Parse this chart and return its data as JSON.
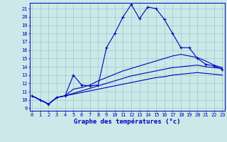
{
  "xlabel": "Graphe des températures (°c)",
  "x_hours": [
    0,
    1,
    2,
    3,
    4,
    5,
    6,
    7,
    8,
    9,
    10,
    11,
    12,
    13,
    14,
    15,
    16,
    17,
    18,
    19,
    20,
    21,
    22,
    23
  ],
  "line_peaked": [
    10.5,
    10.0,
    9.5,
    10.3,
    10.5,
    13.0,
    11.8,
    11.7,
    11.8,
    16.3,
    18.0,
    20.0,
    21.5,
    19.8,
    21.2,
    21.0,
    19.7,
    18.0,
    16.3,
    16.3,
    15.0,
    14.3,
    14.1,
    13.7
  ],
  "line_trend1": [
    10.5,
    10.0,
    9.5,
    10.3,
    10.5,
    11.3,
    11.5,
    11.8,
    12.3,
    12.7,
    13.1,
    13.5,
    13.8,
    14.1,
    14.4,
    14.7,
    15.0,
    15.3,
    15.5,
    15.3,
    15.1,
    14.7,
    14.2,
    13.9
  ],
  "line_trend2": [
    10.5,
    10.0,
    9.5,
    10.3,
    10.5,
    10.8,
    11.1,
    11.4,
    11.7,
    12.0,
    12.3,
    12.6,
    12.9,
    13.1,
    13.3,
    13.5,
    13.7,
    13.9,
    14.0,
    14.1,
    14.2,
    14.0,
    13.9,
    13.8
  ],
  "line_trend3": [
    10.5,
    10.0,
    9.5,
    10.3,
    10.5,
    10.7,
    10.9,
    11.1,
    11.3,
    11.5,
    11.7,
    11.9,
    12.1,
    12.3,
    12.5,
    12.7,
    12.8,
    13.0,
    13.1,
    13.2,
    13.3,
    13.2,
    13.1,
    13.0
  ],
  "bg_color": "#cce8e8",
  "line_color": "#0000bb",
  "grid_color": "#99cccc",
  "xlim": [
    -0.3,
    23.3
  ],
  "ylim": [
    8.7,
    21.7
  ],
  "ytick_min": 9,
  "ytick_max": 21,
  "xlabel_fontsize": 6.5,
  "tick_fontsize": 5.0
}
